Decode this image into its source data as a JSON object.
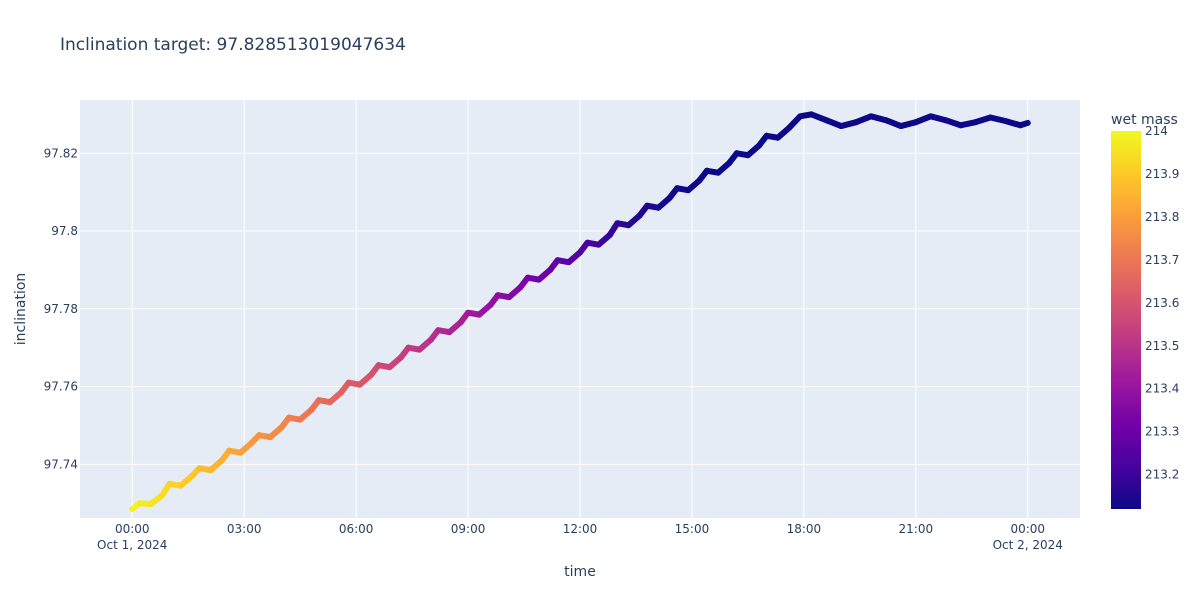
{
  "chart_data": {
    "type": "line",
    "title": "Inclination target: 97.828513019047634",
    "xlabel": "time",
    "ylabel": "inclination",
    "x_tick_labels": [
      {
        "time": "00:00",
        "date": "Oct 1, 2024"
      },
      {
        "time": "03:00",
        "date": ""
      },
      {
        "time": "06:00",
        "date": ""
      },
      {
        "time": "09:00",
        "date": ""
      },
      {
        "time": "12:00",
        "date": ""
      },
      {
        "time": "15:00",
        "date": ""
      },
      {
        "time": "18:00",
        "date": ""
      },
      {
        "time": "21:00",
        "date": ""
      },
      {
        "time": "00:00",
        "date": "Oct 2, 2024"
      }
    ],
    "x_tick_hours": [
      0,
      3,
      6,
      9,
      12,
      15,
      18,
      21,
      24
    ],
    "xlim_hours": [
      -1.4,
      25.4
    ],
    "y_ticks": [
      97.74,
      97.76,
      97.78,
      97.8,
      97.82
    ],
    "y_tick_labels": [
      "97.74",
      "97.76",
      "97.78",
      "97.8",
      "97.82"
    ],
    "ylim": [
      97.7262,
      97.8337
    ],
    "grid": true,
    "series": [
      {
        "x_hours": [
          0.0,
          0.2,
          0.5,
          0.8,
          1.0,
          1.3,
          1.6,
          1.8,
          2.1,
          2.4,
          2.6,
          2.9,
          3.2,
          3.4,
          3.7,
          4.0,
          4.2,
          4.5,
          4.8,
          5.0,
          5.3,
          5.6,
          5.8,
          6.1,
          6.4,
          6.6,
          6.9,
          7.2,
          7.4,
          7.7,
          8.0,
          8.2,
          8.5,
          8.8,
          9.0,
          9.3,
          9.6,
          9.8,
          10.1,
          10.4,
          10.6,
          10.9,
          11.2,
          11.4,
          11.7,
          12.0,
          12.2,
          12.5,
          12.8,
          13.0,
          13.3,
          13.6,
          13.8,
          14.1,
          14.4,
          14.6,
          14.9,
          15.2,
          15.4,
          15.7,
          16.0,
          16.2,
          16.5,
          16.8,
          17.0,
          17.3,
          17.6,
          17.9,
          18.2,
          18.6,
          19.0,
          19.4,
          19.8,
          20.2,
          20.6,
          21.0,
          21.4,
          21.8,
          22.2,
          22.6,
          23.0,
          23.4,
          23.8,
          24.0
        ],
        "y": [
          97.7285,
          97.73,
          97.7298,
          97.732,
          97.735,
          97.7345,
          97.737,
          97.739,
          97.7385,
          97.741,
          97.7435,
          97.743,
          97.7455,
          97.7475,
          97.747,
          97.7495,
          97.752,
          97.7515,
          97.754,
          97.7565,
          97.756,
          97.7585,
          97.761,
          97.7605,
          97.763,
          97.7655,
          97.765,
          97.7675,
          97.77,
          97.7695,
          97.772,
          97.7745,
          97.774,
          97.7765,
          97.779,
          97.7785,
          97.781,
          97.7835,
          97.783,
          97.7855,
          97.788,
          97.7875,
          97.79,
          97.7925,
          97.792,
          97.7945,
          97.797,
          97.7965,
          97.799,
          97.802,
          97.8015,
          97.804,
          97.8065,
          97.806,
          97.8085,
          97.811,
          97.8105,
          97.813,
          97.8155,
          97.815,
          97.8175,
          97.82,
          97.8195,
          97.822,
          97.8245,
          97.824,
          97.8265,
          97.8295,
          97.83,
          97.8285,
          97.827,
          97.828,
          97.8295,
          97.8285,
          97.827,
          97.828,
          97.8295,
          97.8285,
          97.8272,
          97.828,
          97.8292,
          97.8283,
          97.8272,
          97.8278
        ],
        "color_value": [
          214.0,
          213.98,
          213.96,
          213.95,
          213.93,
          213.91,
          213.9,
          213.88,
          213.86,
          213.85,
          213.83,
          213.81,
          213.8,
          213.78,
          213.76,
          213.75,
          213.73,
          213.71,
          213.7,
          213.68,
          213.66,
          213.65,
          213.63,
          213.61,
          213.6,
          213.58,
          213.56,
          213.55,
          213.53,
          213.51,
          213.5,
          213.48,
          213.46,
          213.45,
          213.43,
          213.41,
          213.4,
          213.38,
          213.36,
          213.35,
          213.33,
          213.31,
          213.3,
          213.28,
          213.26,
          213.25,
          213.23,
          213.21,
          213.2,
          213.18,
          213.17,
          213.16,
          213.15,
          213.14,
          213.135,
          213.13,
          213.125,
          213.12,
          213.12,
          213.12,
          213.12,
          213.12,
          213.12,
          213.12,
          213.12,
          213.12,
          213.12,
          213.12,
          213.12,
          213.12,
          213.12,
          213.12,
          213.12,
          213.12,
          213.12,
          213.12,
          213.12,
          213.12,
          213.12,
          213.12,
          213.12,
          213.12,
          213.12,
          213.12
        ]
      }
    ],
    "colorbar": {
      "title": "wet mass",
      "range": [
        213.12,
        214.0
      ],
      "ticks": [
        214,
        213.9,
        213.8,
        213.7,
        213.6,
        213.5,
        213.4,
        213.3,
        213.2
      ],
      "tick_labels": [
        "214",
        "213.9",
        "213.8",
        "213.7",
        "213.6",
        "213.5",
        "213.4",
        "213.3",
        "213.2"
      ],
      "colorscale": [
        "#0d0887",
        "#46039f",
        "#7201a8",
        "#9c179e",
        "#bd3786",
        "#d8576b",
        "#ed7953",
        "#fb9f3a",
        "#fdca26",
        "#f0f921"
      ]
    }
  }
}
